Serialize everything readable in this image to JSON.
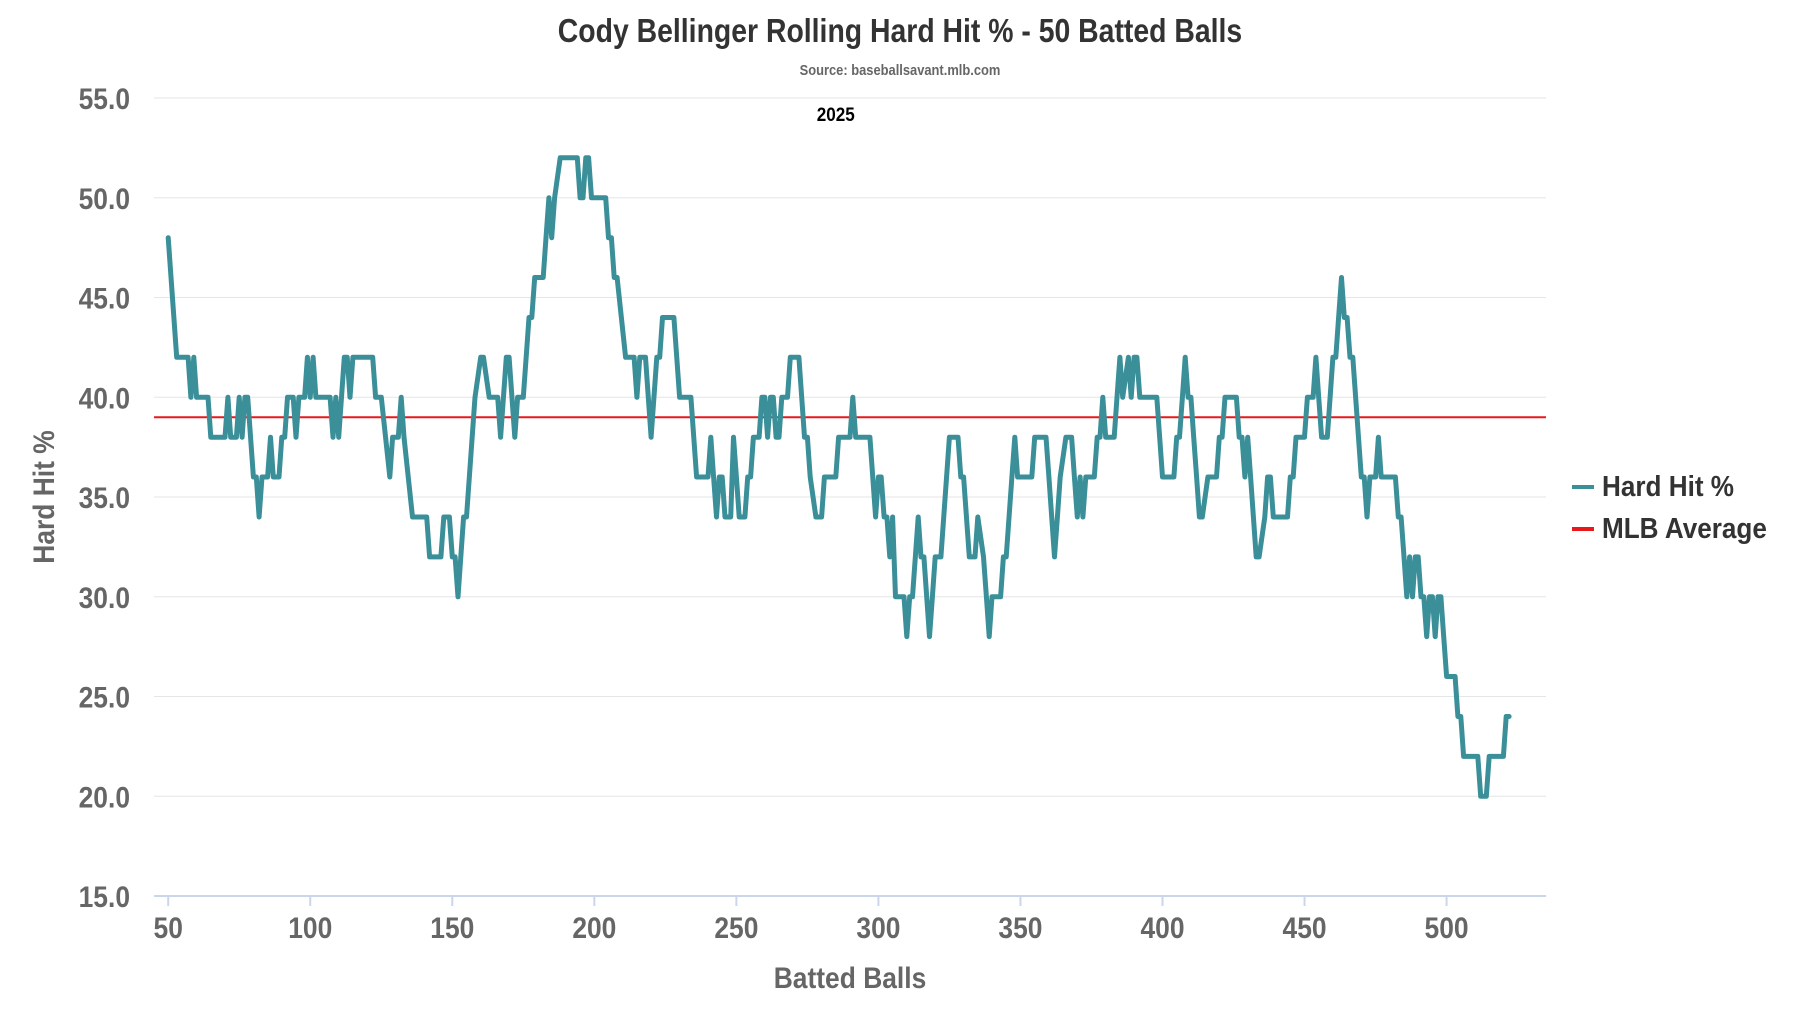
{
  "chart_data": {
    "type": "line",
    "title": "Cody Bellinger Rolling Hard Hit % - 50 Batted Balls",
    "subtitle": "Source: baseballsavant.mlb.com",
    "annotation": "2025",
    "annotation_x": 285,
    "xlabel": "Batted Balls",
    "ylabel": "Hard Hit %",
    "xlim": [
      45,
      535
    ],
    "ylim": [
      15,
      55
    ],
    "x_ticks": [
      50,
      100,
      150,
      200,
      250,
      300,
      350,
      400,
      450,
      500
    ],
    "x_tick_labels": [
      "50",
      "100",
      "150",
      "200",
      "250",
      "300",
      "350",
      "400",
      "450",
      "500"
    ],
    "y_ticks": [
      15,
      20,
      25,
      30,
      35,
      40,
      45,
      50,
      55
    ],
    "y_tick_labels": [
      "15.0",
      "20.0",
      "25.0",
      "30.0",
      "35.0",
      "40.0",
      "45.0",
      "50.0",
      "55.0"
    ],
    "grid": true,
    "legend_position": "right",
    "series": [
      {
        "name": "Hard Hit %",
        "color": "#3a8f99",
        "points": [
          [
            50,
            48
          ],
          [
            53,
            42
          ],
          [
            57,
            42
          ],
          [
            58,
            40
          ],
          [
            59,
            42
          ],
          [
            60,
            40
          ],
          [
            64,
            40
          ],
          [
            65,
            38
          ],
          [
            70,
            38
          ],
          [
            71,
            40
          ],
          [
            72,
            38
          ],
          [
            74,
            38
          ],
          [
            75,
            40
          ],
          [
            76,
            38
          ],
          [
            77,
            40
          ],
          [
            78,
            40
          ],
          [
            80,
            36
          ],
          [
            81,
            36
          ],
          [
            82,
            34
          ],
          [
            83,
            36
          ],
          [
            85,
            36
          ],
          [
            86,
            38
          ],
          [
            87,
            36
          ],
          [
            89,
            36
          ],
          [
            90,
            38
          ],
          [
            91,
            38
          ],
          [
            92,
            40
          ],
          [
            94,
            40
          ],
          [
            95,
            38
          ],
          [
            96,
            40
          ],
          [
            98,
            40
          ],
          [
            99,
            42
          ],
          [
            100,
            40
          ],
          [
            101,
            42
          ],
          [
            102,
            40
          ],
          [
            107,
            40
          ],
          [
            108,
            38
          ],
          [
            109,
            40
          ],
          [
            110,
            38
          ],
          [
            111,
            40
          ],
          [
            112,
            42
          ],
          [
            113,
            42
          ],
          [
            114,
            40
          ],
          [
            115,
            42
          ],
          [
            122,
            42
          ],
          [
            123,
            40
          ],
          [
            125,
            40
          ],
          [
            128,
            36
          ],
          [
            129,
            38
          ],
          [
            131,
            38
          ],
          [
            132,
            40
          ],
          [
            133,
            38
          ],
          [
            136,
            34
          ],
          [
            141,
            34
          ],
          [
            142,
            32
          ],
          [
            146,
            32
          ],
          [
            147,
            34
          ],
          [
            149,
            34
          ],
          [
            150,
            32
          ],
          [
            151,
            32
          ],
          [
            152,
            30
          ],
          [
            154,
            34
          ],
          [
            155,
            34
          ],
          [
            158,
            40
          ],
          [
            160,
            42
          ],
          [
            161,
            42
          ],
          [
            163,
            40
          ],
          [
            166,
            40
          ],
          [
            167,
            38
          ],
          [
            169,
            42
          ],
          [
            170,
            42
          ],
          [
            172,
            38
          ],
          [
            173,
            40
          ],
          [
            175,
            40
          ],
          [
            177,
            44
          ],
          [
            178,
            44
          ],
          [
            179,
            46
          ],
          [
            182,
            46
          ],
          [
            183,
            48
          ],
          [
            184,
            50
          ],
          [
            185,
            48
          ],
          [
            186,
            50
          ],
          [
            188,
            52
          ],
          [
            194,
            52
          ],
          [
            195,
            50
          ],
          [
            196,
            50
          ],
          [
            197,
            52
          ],
          [
            198,
            52
          ],
          [
            199,
            50
          ],
          [
            204,
            50
          ],
          [
            205,
            48
          ],
          [
            206,
            48
          ],
          [
            207,
            46
          ],
          [
            208,
            46
          ],
          [
            211,
            42
          ],
          [
            214,
            42
          ],
          [
            215,
            40
          ],
          [
            216,
            42
          ],
          [
            218,
            42
          ],
          [
            219,
            40
          ],
          [
            220,
            38
          ],
          [
            222,
            42
          ],
          [
            223,
            42
          ],
          [
            224,
            44
          ],
          [
            228,
            44
          ],
          [
            230,
            40
          ],
          [
            234,
            40
          ],
          [
            236,
            36
          ],
          [
            240,
            36
          ],
          [
            241,
            38
          ],
          [
            242,
            36
          ],
          [
            243,
            34
          ],
          [
            244,
            36
          ],
          [
            245,
            36
          ],
          [
            246,
            34
          ],
          [
            248,
            34
          ],
          [
            249,
            38
          ],
          [
            250,
            36
          ],
          [
            251,
            34
          ],
          [
            253,
            34
          ],
          [
            254,
            36
          ],
          [
            255,
            36
          ],
          [
            256,
            38
          ],
          [
            258,
            38
          ],
          [
            259,
            40
          ],
          [
            260,
            40
          ],
          [
            261,
            38
          ],
          [
            262,
            40
          ],
          [
            263,
            40
          ],
          [
            264,
            38
          ],
          [
            265,
            38
          ],
          [
            266,
            40
          ],
          [
            268,
            40
          ],
          [
            269,
            42
          ],
          [
            272,
            42
          ],
          [
            274,
            38
          ],
          [
            275,
            38
          ],
          [
            276,
            36
          ],
          [
            278,
            34
          ],
          [
            280,
            34
          ],
          [
            281,
            36
          ],
          [
            285,
            36
          ],
          [
            286,
            38
          ],
          [
            290,
            38
          ],
          [
            291,
            40
          ],
          [
            292,
            38
          ],
          [
            297,
            38
          ],
          [
            299,
            34
          ],
          [
            300,
            36
          ],
          [
            301,
            36
          ],
          [
            302,
            34
          ],
          [
            303,
            34
          ],
          [
            304,
            32
          ],
          [
            305,
            34
          ],
          [
            306,
            30
          ],
          [
            309,
            30
          ],
          [
            310,
            28
          ],
          [
            311,
            30
          ],
          [
            312,
            30
          ],
          [
            314,
            34
          ],
          [
            315,
            32
          ],
          [
            316,
            32
          ],
          [
            318,
            28
          ],
          [
            319,
            30
          ],
          [
            320,
            32
          ],
          [
            322,
            32
          ],
          [
            325,
            38
          ],
          [
            328,
            38
          ],
          [
            329,
            36
          ],
          [
            330,
            36
          ],
          [
            332,
            32
          ],
          [
            334,
            32
          ],
          [
            335,
            34
          ],
          [
            337,
            32
          ],
          [
            338,
            30
          ],
          [
            339,
            28
          ],
          [
            340,
            30
          ],
          [
            343,
            30
          ],
          [
            344,
            32
          ],
          [
            345,
            32
          ],
          [
            347,
            36
          ],
          [
            348,
            38
          ],
          [
            349,
            36
          ],
          [
            354,
            36
          ],
          [
            355,
            38
          ],
          [
            359,
            38
          ],
          [
            360,
            36
          ],
          [
            362,
            32
          ],
          [
            363,
            34
          ],
          [
            364,
            36
          ],
          [
            366,
            38
          ],
          [
            368,
            38
          ],
          [
            369,
            36
          ],
          [
            370,
            34
          ],
          [
            371,
            36
          ],
          [
            372,
            34
          ],
          [
            373,
            36
          ],
          [
            376,
            36
          ],
          [
            377,
            38
          ],
          [
            378,
            38
          ],
          [
            379,
            40
          ],
          [
            380,
            38
          ],
          [
            383,
            38
          ],
          [
            384,
            40
          ],
          [
            385,
            42
          ],
          [
            386,
            40
          ],
          [
            388,
            42
          ],
          [
            389,
            40
          ],
          [
            390,
            42
          ],
          [
            391,
            42
          ],
          [
            392,
            40
          ],
          [
            398,
            40
          ],
          [
            400,
            36
          ],
          [
            404,
            36
          ],
          [
            405,
            38
          ],
          [
            406,
            38
          ],
          [
            407,
            40
          ],
          [
            408,
            42
          ],
          [
            409,
            40
          ],
          [
            410,
            40
          ],
          [
            411,
            38
          ],
          [
            412,
            36
          ],
          [
            413,
            34
          ],
          [
            414,
            34
          ],
          [
            416,
            36
          ],
          [
            419,
            36
          ],
          [
            420,
            38
          ],
          [
            421,
            38
          ],
          [
            422,
            40
          ],
          [
            426,
            40
          ],
          [
            427,
            38
          ],
          [
            428,
            38
          ],
          [
            429,
            36
          ],
          [
            430,
            38
          ],
          [
            431,
            36
          ],
          [
            432,
            34
          ],
          [
            433,
            32
          ],
          [
            434,
            32
          ],
          [
            436,
            34
          ],
          [
            437,
            36
          ],
          [
            438,
            36
          ],
          [
            439,
            34
          ],
          [
            444,
            34
          ],
          [
            445,
            36
          ],
          [
            446,
            36
          ],
          [
            447,
            38
          ],
          [
            450,
            38
          ],
          [
            451,
            40
          ],
          [
            453,
            40
          ],
          [
            454,
            42
          ],
          [
            455,
            40
          ],
          [
            456,
            38
          ],
          [
            458,
            38
          ],
          [
            459,
            40
          ],
          [
            460,
            42
          ],
          [
            461,
            42
          ],
          [
            462,
            44
          ],
          [
            463,
            46
          ],
          [
            464,
            44
          ],
          [
            465,
            44
          ],
          [
            466,
            42
          ],
          [
            467,
            42
          ],
          [
            470,
            36
          ],
          [
            471,
            36
          ],
          [
            472,
            34
          ],
          [
            473,
            36
          ],
          [
            475,
            36
          ],
          [
            476,
            38
          ],
          [
            477,
            36
          ],
          [
            482,
            36
          ],
          [
            483,
            34
          ],
          [
            484,
            34
          ],
          [
            485,
            32
          ],
          [
            486,
            30
          ],
          [
            487,
            32
          ],
          [
            488,
            30
          ],
          [
            489,
            32
          ],
          [
            490,
            32
          ],
          [
            491,
            30
          ],
          [
            492,
            30
          ],
          [
            493,
            28
          ],
          [
            494,
            30
          ],
          [
            495,
            30
          ],
          [
            496,
            28
          ],
          [
            497,
            30
          ],
          [
            498,
            30
          ],
          [
            499,
            28
          ],
          [
            500,
            26
          ],
          [
            503,
            26
          ],
          [
            504,
            24
          ],
          [
            505,
            24
          ],
          [
            506,
            22
          ],
          [
            511,
            22
          ],
          [
            512,
            20
          ],
          [
            514,
            20
          ],
          [
            515,
            22
          ],
          [
            520,
            22
          ],
          [
            521,
            24
          ],
          [
            522,
            24
          ]
        ]
      },
      {
        "name": "MLB Average",
        "color": "#e8191b",
        "points": [
          [
            45,
            39
          ],
          [
            535,
            39
          ]
        ]
      }
    ]
  }
}
